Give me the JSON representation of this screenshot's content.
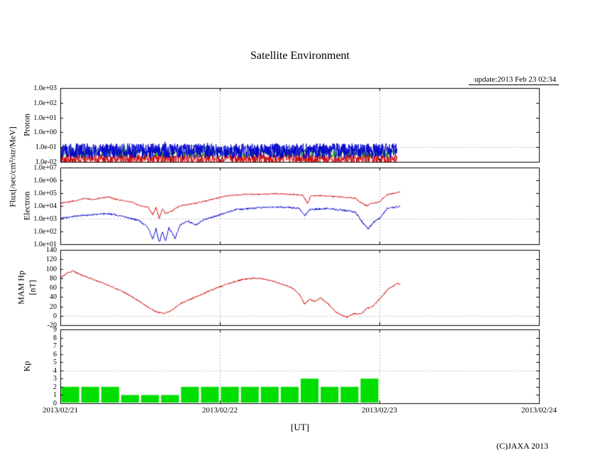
{
  "title": "Satellite Environment",
  "update_text": "update:2013 Feb 23 02:34",
  "copyright": "(C)JAXA 2013",
  "x_axis": {
    "label": "[UT]",
    "tick_labels": [
      "2013/02/21",
      "2013/02/22",
      "2013/02/23",
      "2013/02/24"
    ]
  },
  "axis_titles": {
    "flux": "Flux[/sec/cm²/str/MeV]",
    "proton": "Proton",
    "electron": "Electron",
    "mam_hp": "MAM Hp",
    "mam_hp_unit": "[nT]",
    "kp": "Kp"
  },
  "noise_seed": 20130223,
  "chart_data": [
    {
      "name": "proton_flux",
      "type": "line",
      "yscale": "log",
      "ylim": [
        0.01,
        1000
      ],
      "yticks": [
        "1.0e+03",
        "1.0e+02",
        "1.0e+01",
        "1.0e+00",
        "1.0e-01",
        "1.0e-02"
      ],
      "grid_y": [
        0.1
      ],
      "t_end_days": 2.11,
      "series": [
        {
          "name": "proton-red",
          "color": "#cc0000",
          "noise": {
            "base_log10": -1.8,
            "amp": 0.35,
            "points": 1000,
            "spike_prob": 0.03,
            "spike_amp": 0.7
          }
        },
        {
          "name": "proton-green",
          "color": "#009900",
          "noise": {
            "base_log10": -1.4,
            "amp": 0.3,
            "points": 500,
            "spike_prob": 0.02,
            "spike_amp": 0.4
          }
        },
        {
          "name": "proton-blue",
          "color": "#0000cc",
          "noise": {
            "base_log10": -1.25,
            "amp": 0.5,
            "points": 1400,
            "spike_prob": 0.02,
            "spike_amp": 0.4
          }
        }
      ]
    },
    {
      "name": "electron_flux",
      "type": "line",
      "yscale": "log",
      "ylim": [
        10,
        10000000
      ],
      "yticks": [
        "1.0e+07",
        "1.0e+06",
        "1.0e+05",
        "1.0e+04",
        "1.0e+03",
        "1.0e+02",
        "1.0e+01"
      ],
      "grid_y": [
        1000
      ],
      "t_end_days": 2.13,
      "series": [
        {
          "name": "electron-red",
          "color": "#cc0000",
          "jitter_log10": 0.05,
          "keypoints": [
            [
              0,
              16000
            ],
            [
              0.1,
              25000
            ],
            [
              0.15,
              40000
            ],
            [
              0.2,
              32000
            ],
            [
              0.3,
              50000
            ],
            [
              0.35,
              32000
            ],
            [
              0.45,
              20000
            ],
            [
              0.5,
              10000
            ],
            [
              0.55,
              8000
            ],
            [
              0.58,
              2000
            ],
            [
              0.6,
              8000
            ],
            [
              0.62,
              1000
            ],
            [
              0.64,
              6000
            ],
            [
              0.66,
              2500
            ],
            [
              0.7,
              4000
            ],
            [
              0.75,
              10000
            ],
            [
              0.85,
              16000
            ],
            [
              0.95,
              32000
            ],
            [
              1.05,
              63000
            ],
            [
              1.15,
              80000
            ],
            [
              1.25,
              80000
            ],
            [
              1.35,
              90000
            ],
            [
              1.45,
              80000
            ],
            [
              1.52,
              70000
            ],
            [
              1.55,
              16000
            ],
            [
              1.57,
              63000
            ],
            [
              1.65,
              63000
            ],
            [
              1.75,
              50000
            ],
            [
              1.85,
              40000
            ],
            [
              1.88,
              20000
            ],
            [
              1.92,
              10000
            ],
            [
              1.95,
              16000
            ],
            [
              2.0,
              20000
            ],
            [
              2.05,
              80000
            ],
            [
              2.1,
              100000
            ],
            [
              2.13,
              130000
            ]
          ]
        },
        {
          "name": "electron-blue",
          "color": "#0000cc",
          "jitter_log10": 0.07,
          "keypoints": [
            [
              0,
              1000
            ],
            [
              0.1,
              1600
            ],
            [
              0.2,
              2000
            ],
            [
              0.3,
              2500
            ],
            [
              0.35,
              2000
            ],
            [
              0.45,
              1000
            ],
            [
              0.5,
              630
            ],
            [
              0.55,
              200
            ],
            [
              0.58,
              25
            ],
            [
              0.6,
              160
            ],
            [
              0.62,
              13
            ],
            [
              0.64,
              100
            ],
            [
              0.66,
              16
            ],
            [
              0.68,
              200
            ],
            [
              0.72,
              30
            ],
            [
              0.75,
              320
            ],
            [
              0.8,
              630
            ],
            [
              0.85,
              320
            ],
            [
              0.9,
              800
            ],
            [
              1.0,
              2000
            ],
            [
              1.1,
              5000
            ],
            [
              1.2,
              6300
            ],
            [
              1.3,
              8000
            ],
            [
              1.4,
              8000
            ],
            [
              1.5,
              6300
            ],
            [
              1.53,
              1600
            ],
            [
              1.56,
              5000
            ],
            [
              1.65,
              6300
            ],
            [
              1.75,
              5000
            ],
            [
              1.85,
              3200
            ],
            [
              1.9,
              400
            ],
            [
              1.93,
              160
            ],
            [
              1.97,
              630
            ],
            [
              2.0,
              1000
            ],
            [
              2.05,
              6300
            ],
            [
              2.1,
              8000
            ],
            [
              2.13,
              10000
            ]
          ]
        }
      ]
    },
    {
      "name": "mam_hp",
      "type": "line",
      "yscale": "linear",
      "ylim": [
        -20,
        140
      ],
      "yticks": [
        "140",
        "120",
        "100",
        "80",
        "60",
        "40",
        "20",
        "0",
        "-20"
      ],
      "grid_y": [
        0
      ],
      "t_end_days": 2.13,
      "series": [
        {
          "name": "hp",
          "color": "#cc0000",
          "jitter": 1.5,
          "keypoints": [
            [
              0,
              80
            ],
            [
              0.05,
              92
            ],
            [
              0.08,
              95
            ],
            [
              0.12,
              88
            ],
            [
              0.2,
              78
            ],
            [
              0.3,
              65
            ],
            [
              0.4,
              50
            ],
            [
              0.5,
              30
            ],
            [
              0.55,
              18
            ],
            [
              0.6,
              8
            ],
            [
              0.65,
              5
            ],
            [
              0.7,
              12
            ],
            [
              0.75,
              25
            ],
            [
              0.85,
              40
            ],
            [
              0.95,
              55
            ],
            [
              1.05,
              68
            ],
            [
              1.15,
              78
            ],
            [
              1.25,
              80
            ],
            [
              1.35,
              72
            ],
            [
              1.45,
              60
            ],
            [
              1.5,
              45
            ],
            [
              1.53,
              25
            ],
            [
              1.56,
              35
            ],
            [
              1.6,
              30
            ],
            [
              1.63,
              38
            ],
            [
              1.68,
              25
            ],
            [
              1.72,
              10
            ],
            [
              1.76,
              2
            ],
            [
              1.8,
              -3
            ],
            [
              1.84,
              5
            ],
            [
              1.88,
              3
            ],
            [
              1.92,
              15
            ],
            [
              1.96,
              20
            ],
            [
              2.0,
              35
            ],
            [
              2.05,
              55
            ],
            [
              2.08,
              62
            ],
            [
              2.11,
              68
            ],
            [
              2.13,
              67
            ]
          ]
        }
      ]
    },
    {
      "name": "kp",
      "type": "bar",
      "yscale": "linear",
      "ylim": [
        0,
        9
      ],
      "yticks": [
        "9",
        "8",
        "7",
        "6",
        "5",
        "4",
        "3",
        "2",
        "1",
        "0"
      ],
      "grid_y": [
        4
      ],
      "bar_width_days": 0.125,
      "color": "#00dd00",
      "values": [
        2,
        2,
        2,
        1,
        1,
        1,
        2,
        2,
        2,
        2,
        2,
        2,
        3,
        2,
        2,
        3
      ]
    }
  ]
}
